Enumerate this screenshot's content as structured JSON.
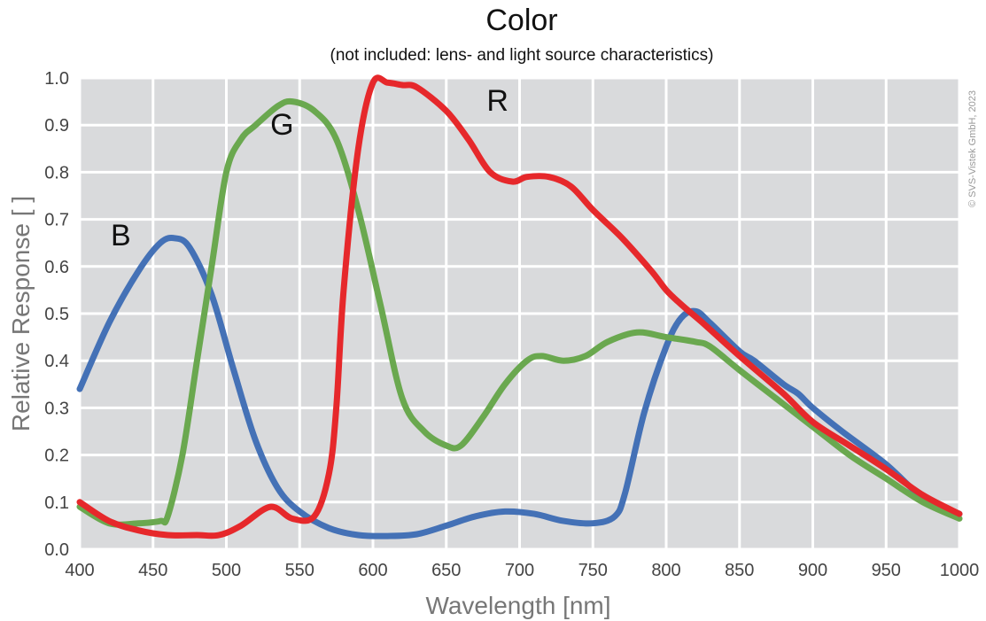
{
  "chart_data": {
    "type": "line",
    "title": "Color",
    "subtitle": "(not included: lens- and light source characteristics)",
    "xlabel": "Wavelength [nm]",
    "ylabel": "Relative Response [ ]",
    "xlim": [
      400,
      1000
    ],
    "ylim": [
      0,
      1
    ],
    "x_ticks": [
      "400",
      "450",
      "500",
      "550",
      "600",
      "650",
      "700",
      "750",
      "800",
      "850",
      "900",
      "950",
      "1000"
    ],
    "y_ticks": [
      "0.0",
      "0.1",
      "0.2",
      "0.3",
      "0.4",
      "0.5",
      "0.6",
      "0.7",
      "0.8",
      "0.9",
      "1.0"
    ],
    "grid": true,
    "background": "#d9dadc",
    "copyright": "© SVS-Vistek GmbH, 2023",
    "series": [
      {
        "name": "B",
        "color": "#4471b6",
        "x": [
          400,
          420,
          440,
          455,
          465,
          475,
          490,
          505,
          520,
          535,
          550,
          570,
          590,
          610,
          630,
          650,
          670,
          690,
          710,
          730,
          750,
          765,
          772,
          785,
          800,
          810,
          820,
          830,
          850,
          860,
          880,
          890,
          900,
          920,
          950,
          975,
          1000
        ],
        "y": [
          0.34,
          0.48,
          0.59,
          0.65,
          0.66,
          0.64,
          0.54,
          0.38,
          0.23,
          0.13,
          0.08,
          0.045,
          0.03,
          0.028,
          0.032,
          0.05,
          0.07,
          0.08,
          0.075,
          0.06,
          0.055,
          0.07,
          0.12,
          0.29,
          0.43,
          0.49,
          0.505,
          0.48,
          0.42,
          0.4,
          0.35,
          0.33,
          0.3,
          0.25,
          0.18,
          0.11,
          0.075
        ]
      },
      {
        "name": "G",
        "color": "#6aa84f",
        "x": [
          400,
          420,
          440,
          455,
          460,
          470,
          480,
          490,
          500,
          510,
          520,
          535,
          545,
          560,
          575,
          590,
          605,
          620,
          635,
          650,
          660,
          675,
          690,
          705,
          715,
          730,
          745,
          760,
          780,
          800,
          820,
          830,
          850,
          875,
          900,
          925,
          950,
          975,
          1000
        ],
        "y": [
          0.09,
          0.055,
          0.055,
          0.06,
          0.07,
          0.2,
          0.4,
          0.6,
          0.8,
          0.87,
          0.9,
          0.94,
          0.95,
          0.93,
          0.87,
          0.72,
          0.52,
          0.32,
          0.25,
          0.22,
          0.22,
          0.28,
          0.35,
          0.4,
          0.41,
          0.4,
          0.41,
          0.44,
          0.46,
          0.45,
          0.44,
          0.43,
          0.38,
          0.32,
          0.26,
          0.2,
          0.15,
          0.1,
          0.065
        ]
      },
      {
        "name": "R",
        "color": "#e6282b",
        "x": [
          400,
          420,
          440,
          460,
          480,
          495,
          510,
          530,
          545,
          560,
          570,
          575,
          580,
          590,
          600,
          610,
          620,
          630,
          650,
          665,
          680,
          695,
          705,
          720,
          735,
          750,
          770,
          790,
          800,
          810,
          825,
          850,
          880,
          900,
          925,
          950,
          975,
          1000
        ],
        "y": [
          0.1,
          0.06,
          0.04,
          0.03,
          0.03,
          0.03,
          0.05,
          0.09,
          0.065,
          0.07,
          0.16,
          0.3,
          0.55,
          0.85,
          0.99,
          0.99,
          0.985,
          0.98,
          0.93,
          0.87,
          0.8,
          0.78,
          0.79,
          0.79,
          0.77,
          0.72,
          0.66,
          0.59,
          0.55,
          0.52,
          0.48,
          0.41,
          0.33,
          0.27,
          0.22,
          0.17,
          0.115,
          0.075
        ]
      }
    ],
    "series_label_positions": [
      {
        "name": "B",
        "x": 428,
        "y": 0.645
      },
      {
        "name": "G",
        "x": 538,
        "y": 0.88
      },
      {
        "name": "R",
        "x": 685,
        "y": 0.93
      }
    ]
  }
}
